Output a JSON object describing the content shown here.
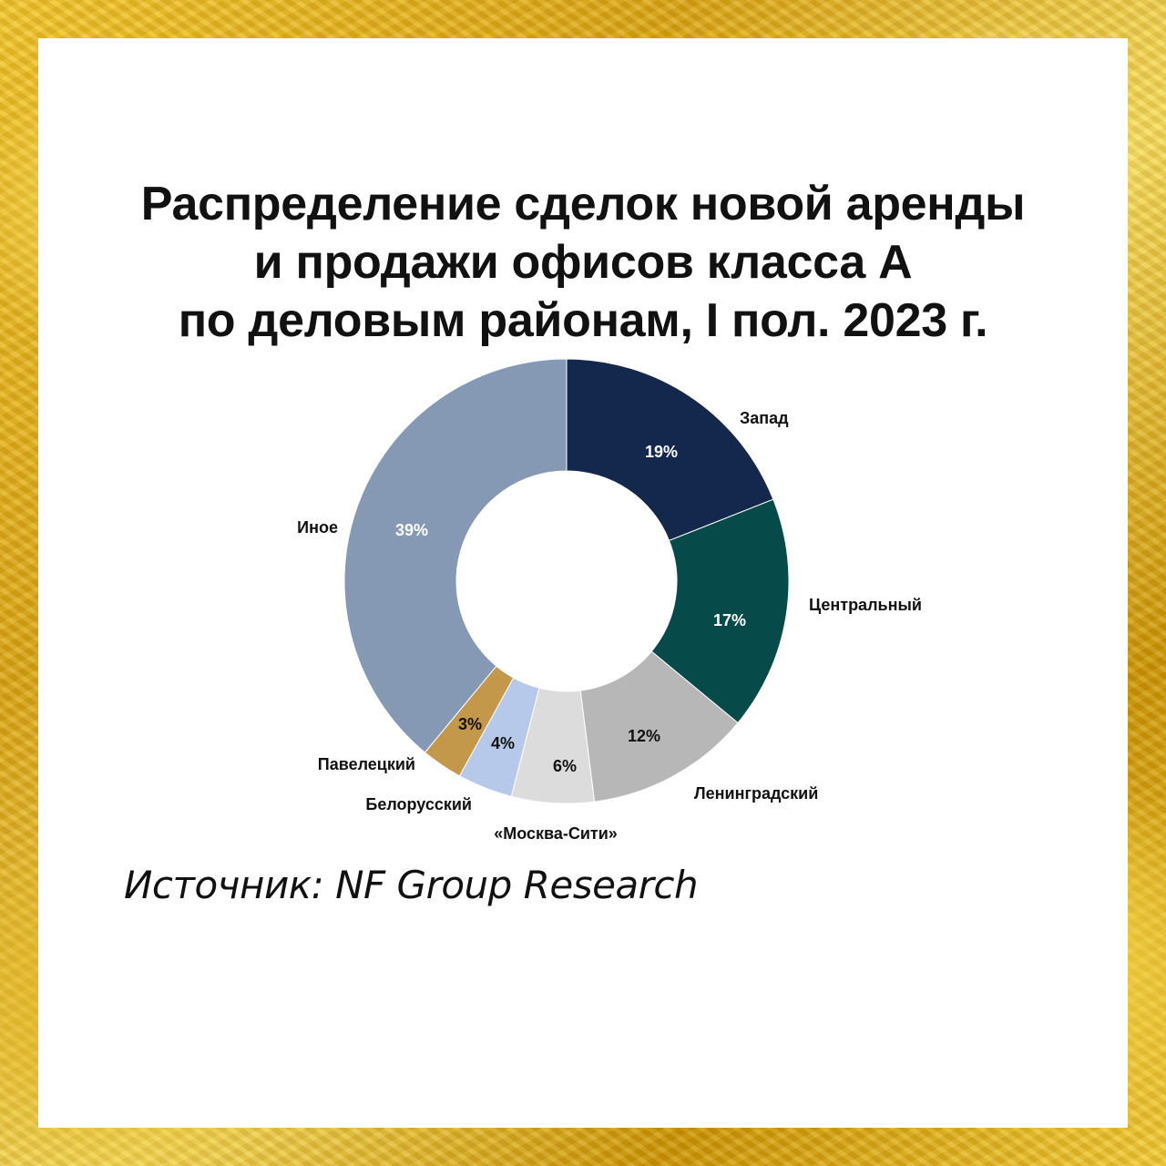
{
  "header": {
    "title_lines": [
      "Распределение сделок новой аренды",
      "и продажи офисов класса А",
      "по деловым районам, I пол. 2023 г."
    ]
  },
  "footer": {
    "source": "Источник: NF Group Research"
  },
  "chart_data": {
    "type": "pie",
    "donut": true,
    "start_angle_deg": 0,
    "direction": "clockwise",
    "legend": "none",
    "units": "%",
    "slices": [
      {
        "name": "Запад",
        "label": "19%",
        "value": 19,
        "color": "#13284c",
        "text_color": "#ffffff"
      },
      {
        "name": "Центральный",
        "label": "17%",
        "value": 17,
        "color": "#064b4a",
        "text_color": "#ffffff"
      },
      {
        "name": "Ленинградский",
        "label": "12%",
        "value": 12,
        "color": "#b7b7b7",
        "text_color": "#111111"
      },
      {
        "name": "«Москва-Сити»",
        "label": "6%",
        "value": 6,
        "color": "#dcdcdc",
        "text_color": "#111111"
      },
      {
        "name": "Белорусский",
        "label": "4%",
        "value": 4,
        "color": "#b7c9ea",
        "text_color": "#111111"
      },
      {
        "name": "Павелецкий",
        "label": "3%",
        "value": 3,
        "color": "#c4984b",
        "text_color": "#111111"
      },
      {
        "name": "Иное",
        "label": "39%",
        "value": 39,
        "color": "#8599b4",
        "text_color": "#ffffff"
      }
    ]
  }
}
